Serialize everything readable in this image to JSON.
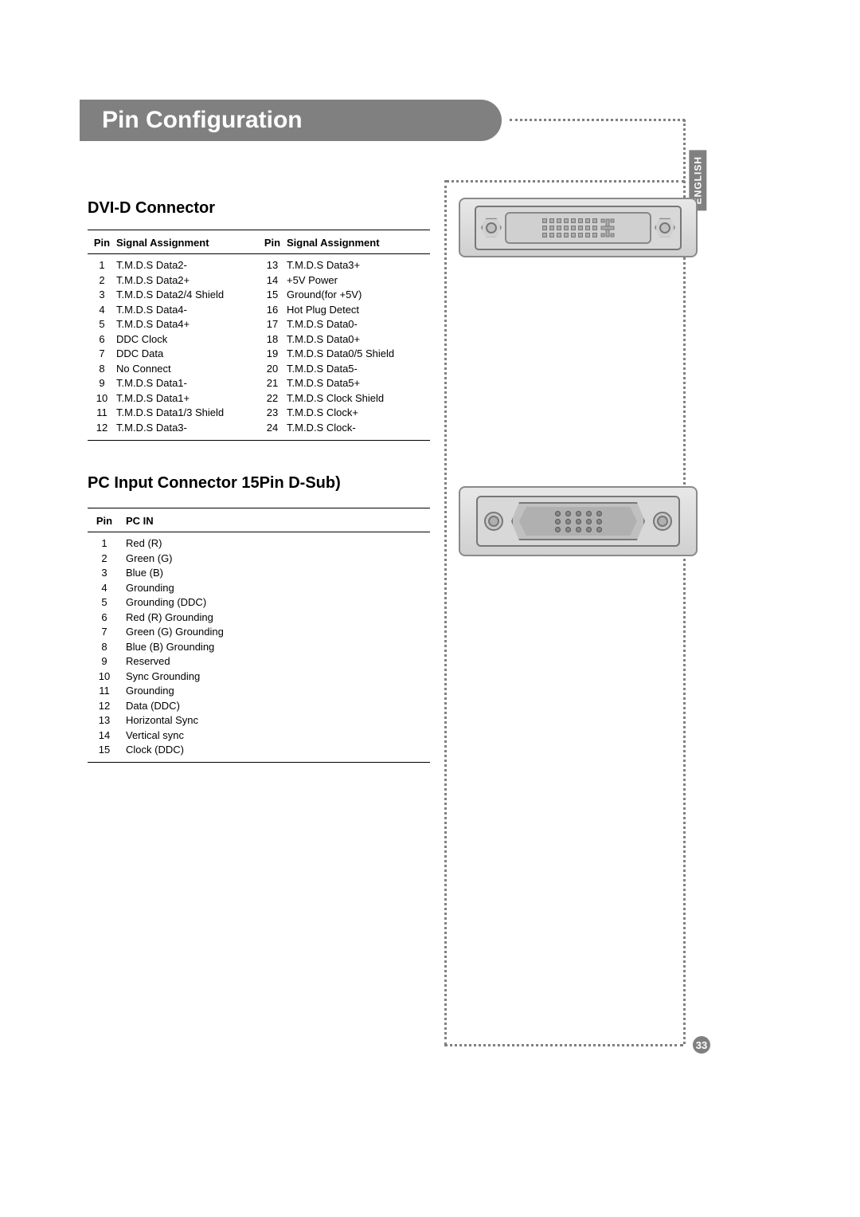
{
  "page_title": "Pin Configuration",
  "language_tab": "ENGLISH",
  "page_number": "33",
  "section1": {
    "title": "DVI-D Connector",
    "headers": {
      "pin_a": "Pin",
      "sig_a": "Signal Assignment",
      "pin_b": "Pin",
      "sig_b": "Signal Assignment"
    },
    "rows_a": [
      {
        "pin": "1",
        "sig": "T.M.D.S Data2-"
      },
      {
        "pin": "2",
        "sig": "T.M.D.S Data2+"
      },
      {
        "pin": "3",
        "sig": "T.M.D.S Data2/4 Shield"
      },
      {
        "pin": "4",
        "sig": "T.M.D.S Data4-"
      },
      {
        "pin": "5",
        "sig": "T.M.D.S Data4+"
      },
      {
        "pin": "6",
        "sig": "DDC Clock"
      },
      {
        "pin": "7",
        "sig": "DDC Data"
      },
      {
        "pin": "8",
        "sig": "No Connect"
      },
      {
        "pin": "9",
        "sig": "T.M.D.S Data1-"
      },
      {
        "pin": "10",
        "sig": "T.M.D.S Data1+"
      },
      {
        "pin": "11",
        "sig": "T.M.D.S Data1/3 Shield"
      },
      {
        "pin": "12",
        "sig": "T.M.D.S Data3-"
      }
    ],
    "rows_b": [
      {
        "pin": "13",
        "sig": "T.M.D.S Data3+"
      },
      {
        "pin": "14",
        "sig": "+5V Power"
      },
      {
        "pin": "15",
        "sig": "Ground(for +5V)"
      },
      {
        "pin": "16",
        "sig": "Hot Plug Detect"
      },
      {
        "pin": "17",
        "sig": "T.M.D.S Data0-"
      },
      {
        "pin": "18",
        "sig": "T.M.D.S Data0+"
      },
      {
        "pin": "19",
        "sig": "T.M.D.S Data0/5 Shield"
      },
      {
        "pin": "20",
        "sig": "T.M.D.S Data5-"
      },
      {
        "pin": "21",
        "sig": "T.M.D.S Data5+"
      },
      {
        "pin": "22",
        "sig": "T.M.D.S Clock Shield"
      },
      {
        "pin": "23",
        "sig": "T.M.D.S Clock+"
      },
      {
        "pin": "24",
        "sig": "T.M.D.S Clock-"
      }
    ]
  },
  "section2": {
    "title": "PC Input Connector 15Pin D-Sub)",
    "headers": {
      "pin": "Pin",
      "sig": "PC IN"
    },
    "rows": [
      {
        "pin": "1",
        "sig": "Red (R)"
      },
      {
        "pin": "2",
        "sig": "Green (G)"
      },
      {
        "pin": "3",
        "sig": "Blue (B)"
      },
      {
        "pin": "4",
        "sig": "Grounding"
      },
      {
        "pin": "5",
        "sig": "Grounding (DDC)"
      },
      {
        "pin": "6",
        "sig": "Red (R) Grounding"
      },
      {
        "pin": "7",
        "sig": "Green (G) Grounding"
      },
      {
        "pin": "8",
        "sig": "Blue (B) Grounding"
      },
      {
        "pin": "9",
        "sig": "Reserved"
      },
      {
        "pin": "10",
        "sig": "Sync Grounding"
      },
      {
        "pin": "11",
        "sig": "Grounding"
      },
      {
        "pin": "12",
        "sig": "Data (DDC)"
      },
      {
        "pin": "13",
        "sig": "Horizontal Sync"
      },
      {
        "pin": "14",
        "sig": "Vertical sync"
      },
      {
        "pin": "15",
        "sig": "Clock (DDC)"
      }
    ]
  },
  "colors": {
    "title_bar_bg": "#808080",
    "title_text": "#ffffff",
    "border": "#000000",
    "dots": "#808080",
    "connector_border": "#8a8a8a"
  }
}
